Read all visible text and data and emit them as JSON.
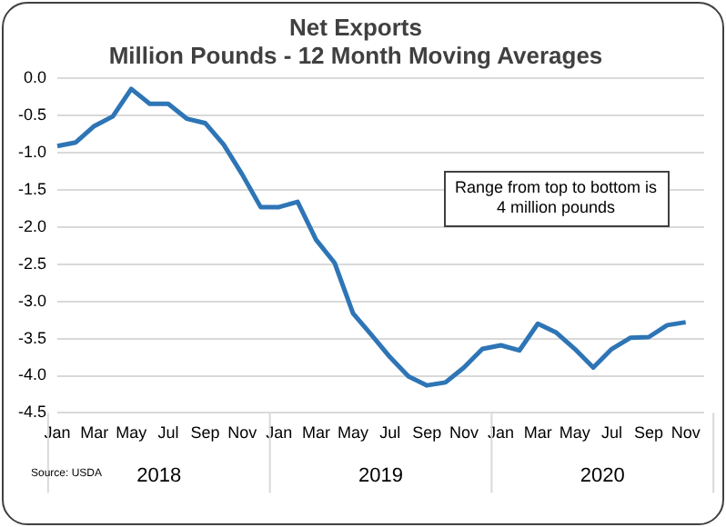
{
  "chart_data": {
    "type": "line",
    "title": "Net Exports\nMillion Pounds - 12 Month Moving Averages",
    "categories": [
      "Jan",
      null,
      "Mar",
      null,
      "May",
      null,
      "Jul",
      null,
      "Sep",
      null,
      "Nov",
      null,
      "Jan",
      null,
      "Mar",
      null,
      "May",
      null,
      "Jul",
      null,
      "Sep",
      null,
      "Nov",
      null,
      "Jan",
      null,
      "Mar",
      null,
      "May",
      null,
      "Jul",
      null,
      "Sep",
      null,
      "Nov",
      null
    ],
    "series": [
      {
        "color": "#2e75b6",
        "values": [
          -0.91,
          -0.86,
          -0.64,
          -0.51,
          -0.14,
          -0.34,
          -0.34,
          -0.54,
          -0.6,
          -0.89,
          -1.29,
          -1.73,
          -1.73,
          -1.66,
          -2.17,
          -2.48,
          -3.16,
          -3.45,
          -3.75,
          -4.01,
          -4.13,
          -4.09,
          -3.89,
          -3.64,
          -3.59,
          -3.66,
          -3.3,
          -3.42,
          -3.64,
          -3.89,
          -3.64,
          -3.49,
          -3.48,
          -3.32,
          -3.28,
          null
        ]
      }
    ],
    "ylim": [
      -4.5,
      0
    ],
    "yticks": [
      {
        "value": -4.5,
        "label": "-4.5"
      },
      {
        "value": -4,
        "label": "-4.0"
      },
      {
        "value": -3.5,
        "label": "-3.5"
      },
      {
        "value": -3,
        "label": "-3.0"
      },
      {
        "value": -2.5,
        "label": "-2.5"
      },
      {
        "value": -2,
        "label": "-2.0"
      },
      {
        "value": -1.5,
        "label": "-1.5"
      },
      {
        "value": -1,
        "label": "-1.0"
      },
      {
        "value": -0.5,
        "label": "-0.5"
      },
      {
        "value": 0,
        "label": "0.0"
      }
    ],
    "grid": "y",
    "legend": false,
    "marker": "none",
    "line_style": "solid",
    "annotations": [
      "Range from top to bottom is 4 million pounds",
      "2018",
      "2019",
      "2020",
      "Source: USDA"
    ]
  }
}
